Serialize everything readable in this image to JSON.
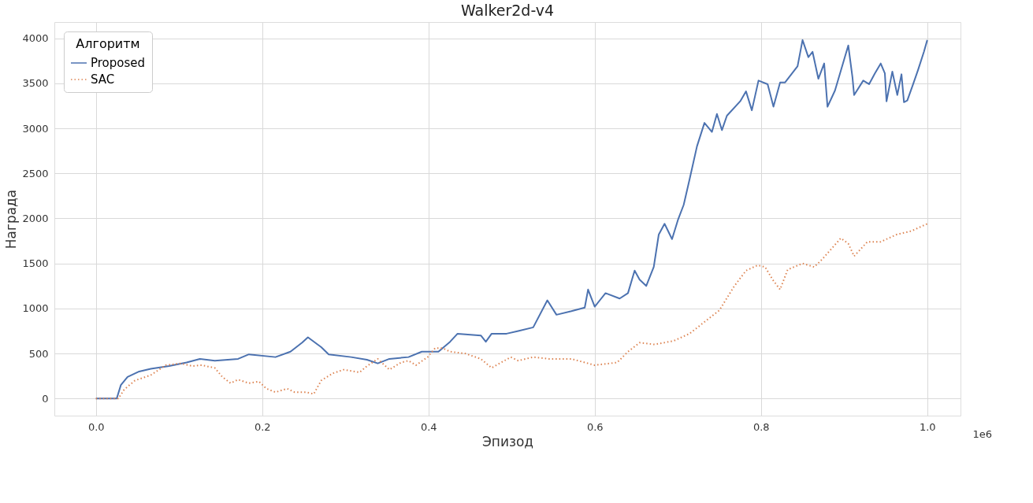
{
  "chart_data": {
    "type": "line",
    "title": "Walker2d-v4",
    "xlabel": "Эпизод",
    "ylabel": "Награда",
    "legend_title": "Алгоритм",
    "legend": "top left",
    "grid": true,
    "xlim": [
      -0.05,
      1.04
    ],
    "ylim": [
      -190,
      4180
    ],
    "xticks": [
      {
        "value": 0,
        "label": "0.0"
      },
      0.2,
      0.4,
      0.6,
      0.8,
      {
        "value": 1,
        "label": "1.0"
      }
    ],
    "yticks": [
      0,
      500,
      1000,
      1500,
      2000,
      2500,
      3000,
      3500,
      4000
    ],
    "annotations": [
      "1e6"
    ],
    "series": [
      {
        "name": "Proposed",
        "color": "#4c72b0",
        "line_style": "solid",
        "x": [
          0,
          0.025,
          0.03,
          0.038,
          0.052,
          0.066,
          0.088,
          0.109,
          0.125,
          0.143,
          0.171,
          0.184,
          0.216,
          0.234,
          0.248,
          0.255,
          0.271,
          0.28,
          0.307,
          0.326,
          0.339,
          0.353,
          0.376,
          0.392,
          0.412,
          0.426,
          0.435,
          0.463,
          0.469,
          0.476,
          0.494,
          0.508,
          0.526,
          0.543,
          0.554,
          0.572,
          0.588,
          0.592,
          0.6,
          0.613,
          0.63,
          0.64,
          0.648,
          0.654,
          0.662,
          0.671,
          0.677,
          0.684,
          0.693,
          0.7,
          0.707,
          0.714,
          0.723,
          0.732,
          0.741,
          0.747,
          0.753,
          0.759,
          0.775,
          0.782,
          0.789,
          0.797,
          0.808,
          0.815,
          0.823,
          0.829,
          0.844,
          0.85,
          0.857,
          0.862,
          0.869,
          0.876,
          0.88,
          0.889,
          0.905,
          0.91,
          0.912,
          0.923,
          0.93,
          0.937,
          0.944,
          0.949,
          0.951,
          0.958,
          0.964,
          0.969,
          0.972,
          0.976,
          0.983,
          0.989,
          0.996,
          1
        ],
        "values": [
          0,
          0,
          150,
          240,
          300,
          330,
          360,
          400,
          440,
          420,
          440,
          490,
          460,
          520,
          620,
          680,
          570,
          490,
          460,
          430,
          390,
          440,
          460,
          520,
          520,
          630,
          720,
          700,
          630,
          720,
          720,
          750,
          790,
          1090,
          930,
          970,
          1010,
          1210,
          1020,
          1170,
          1110,
          1170,
          1420,
          1320,
          1250,
          1460,
          1820,
          1940,
          1770,
          1980,
          2150,
          2430,
          2800,
          3060,
          2960,
          3160,
          2980,
          3140,
          3300,
          3410,
          3200,
          3530,
          3490,
          3240,
          3510,
          3510,
          3690,
          3980,
          3790,
          3850,
          3550,
          3720,
          3240,
          3420,
          3920,
          3570,
          3370,
          3530,
          3490,
          3610,
          3720,
          3610,
          3300,
          3630,
          3370,
          3600,
          3290,
          3310,
          3490,
          3650,
          3850,
          3980
        ]
      },
      {
        "name": "SAC",
        "color": "#dd8452",
        "line_style": "dotted",
        "x": [
          0,
          0.027,
          0.034,
          0.047,
          0.066,
          0.084,
          0.102,
          0.116,
          0.127,
          0.143,
          0.152,
          0.162,
          0.171,
          0.184,
          0.196,
          0.205,
          0.216,
          0.23,
          0.239,
          0.253,
          0.262,
          0.271,
          0.285,
          0.298,
          0.317,
          0.326,
          0.339,
          0.353,
          0.367,
          0.376,
          0.385,
          0.399,
          0.408,
          0.417,
          0.426,
          0.444,
          0.463,
          0.476,
          0.499,
          0.508,
          0.526,
          0.545,
          0.572,
          0.6,
          0.627,
          0.64,
          0.654,
          0.672,
          0.695,
          0.714,
          0.732,
          0.75,
          0.768,
          0.782,
          0.796,
          0.805,
          0.814,
          0.823,
          0.832,
          0.85,
          0.864,
          0.873,
          0.896,
          0.905,
          0.912,
          0.928,
          0.944,
          0.963,
          0.981,
          1
        ],
        "values": [
          0,
          0,
          100,
          200,
          260,
          370,
          390,
          360,
          370,
          340,
          240,
          170,
          210,
          170,
          190,
          110,
          70,
          110,
          70,
          70,
          50,
          200,
          280,
          320,
          290,
          360,
          440,
          320,
          400,
          420,
          370,
          460,
          560,
          560,
          520,
          500,
          440,
          340,
          460,
          420,
          460,
          440,
          440,
          370,
          400,
          520,
          620,
          600,
          640,
          720,
          850,
          980,
          1250,
          1420,
          1480,
          1460,
          1320,
          1210,
          1430,
          1500,
          1460,
          1540,
          1780,
          1720,
          1580,
          1740,
          1740,
          1820,
          1860,
          1940
        ]
      }
    ]
  }
}
